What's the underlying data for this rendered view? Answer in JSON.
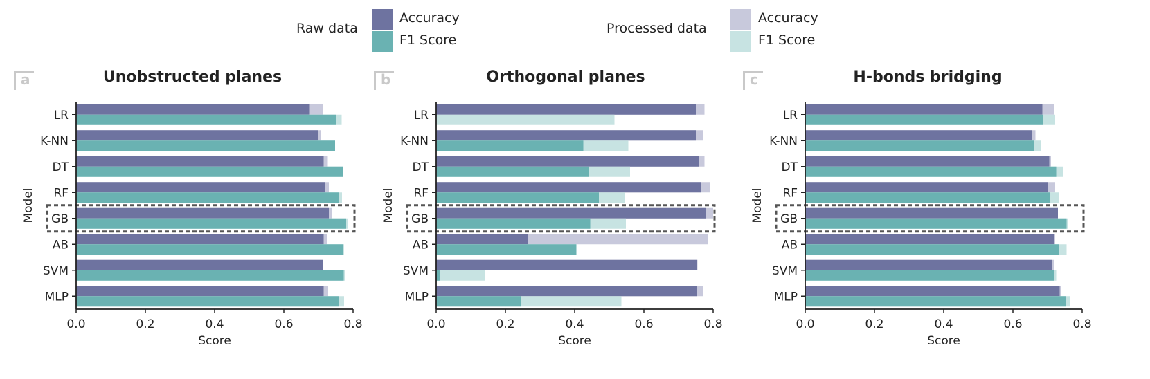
{
  "legend": {
    "raw_label": "Raw data",
    "processed_label": "Processed data",
    "raw_accuracy": "Accuracy",
    "raw_f1": "F1 Score",
    "proc_accuracy": "Accuracy",
    "proc_f1": "F1 Score"
  },
  "colors": {
    "raw_accuracy": "#6e73a0",
    "raw_f1": "#6ab2b2",
    "proc_accuracy": "#c8c9dc",
    "proc_f1": "#c7e3e2",
    "highlight_box": "#555555",
    "panel_letter": "#c9c9c9"
  },
  "highlighted_model": "GB",
  "chart_data": [
    {
      "type": "bar",
      "orientation": "horizontal",
      "panel_letter": "a",
      "title": "Unobstructed planes",
      "xlabel": "Score",
      "ylabel": "Model",
      "xlim": [
        0,
        0.8
      ],
      "xticks": [
        0.0,
        0.2,
        0.4,
        0.6,
        0.8
      ],
      "xtick_labels": [
        "0.0",
        "0.2",
        "0.4",
        "0.6",
        "0.8"
      ],
      "categories": [
        "LR",
        "K-NN",
        "DT",
        "RF",
        "GB",
        "AB",
        "SVM",
        "MLP"
      ],
      "series": [
        {
          "name": "Raw data Accuracy",
          "values": [
            0.675,
            0.7,
            0.715,
            0.72,
            0.73,
            0.715,
            0.712,
            0.715
          ]
        },
        {
          "name": "Processed data Accuracy",
          "values": [
            0.712,
            0.706,
            0.727,
            0.73,
            0.738,
            0.726,
            0.712,
            0.728
          ]
        },
        {
          "name": "Raw data F1 Score",
          "values": [
            0.75,
            0.748,
            0.77,
            0.758,
            0.78,
            0.77,
            0.773,
            0.76
          ]
        },
        {
          "name": "Processed data F1 Score",
          "values": [
            0.767,
            0.748,
            0.77,
            0.768,
            0.786,
            0.774,
            0.776,
            0.774
          ]
        }
      ]
    },
    {
      "type": "bar",
      "orientation": "horizontal",
      "panel_letter": "b",
      "title": "Orthogonal planes",
      "xlabel": "Score",
      "ylabel": "Model",
      "xlim": [
        0,
        0.8
      ],
      "xticks": [
        0.0,
        0.2,
        0.4,
        0.6,
        0.8
      ],
      "xtick_labels": [
        "0.0",
        "0.2",
        "0.4",
        "0.6",
        "0.8"
      ],
      "categories": [
        "LR",
        "K-NN",
        "DT",
        "RF",
        "GB",
        "AB",
        "SVM",
        "MLP"
      ],
      "series": [
        {
          "name": "Raw data Accuracy",
          "values": [
            0.75,
            0.75,
            0.76,
            0.765,
            0.78,
            0.265,
            0.752,
            0.752
          ]
        },
        {
          "name": "Processed data Accuracy",
          "values": [
            0.775,
            0.77,
            0.775,
            0.79,
            0.8,
            0.785,
            0.755,
            0.77
          ]
        },
        {
          "name": "Raw data F1 Score",
          "values": [
            0.0,
            0.425,
            0.44,
            0.47,
            0.445,
            0.405,
            0.012,
            0.245
          ]
        },
        {
          "name": "Processed data F1 Score",
          "values": [
            0.515,
            0.555,
            0.56,
            0.545,
            0.548,
            0.405,
            0.14,
            0.535
          ]
        }
      ]
    },
    {
      "type": "bar",
      "orientation": "horizontal",
      "panel_letter": "c",
      "title": "H-bonds bridging",
      "xlabel": "Score",
      "ylabel": "Model",
      "xlim": [
        0,
        0.8
      ],
      "xticks": [
        0.0,
        0.2,
        0.4,
        0.6,
        0.8
      ],
      "xtick_labels": [
        "0.0",
        "0.2",
        "0.4",
        "0.6",
        "0.8"
      ],
      "categories": [
        "LR",
        "K-NN",
        "DT",
        "RF",
        "GB",
        "AB",
        "SVM",
        "MLP"
      ],
      "series": [
        {
          "name": "Raw data Accuracy",
          "values": [
            0.685,
            0.655,
            0.705,
            0.702,
            0.73,
            0.718,
            0.712,
            0.735
          ]
        },
        {
          "name": "Processed data Accuracy",
          "values": [
            0.718,
            0.665,
            0.71,
            0.722,
            0.73,
            0.722,
            0.72,
            0.738
          ]
        },
        {
          "name": "Raw data F1 Score",
          "values": [
            0.688,
            0.66,
            0.725,
            0.708,
            0.755,
            0.732,
            0.718,
            0.753
          ]
        },
        {
          "name": "Processed data F1 Score",
          "values": [
            0.722,
            0.68,
            0.745,
            0.732,
            0.76,
            0.755,
            0.725,
            0.766
          ]
        }
      ]
    }
  ]
}
